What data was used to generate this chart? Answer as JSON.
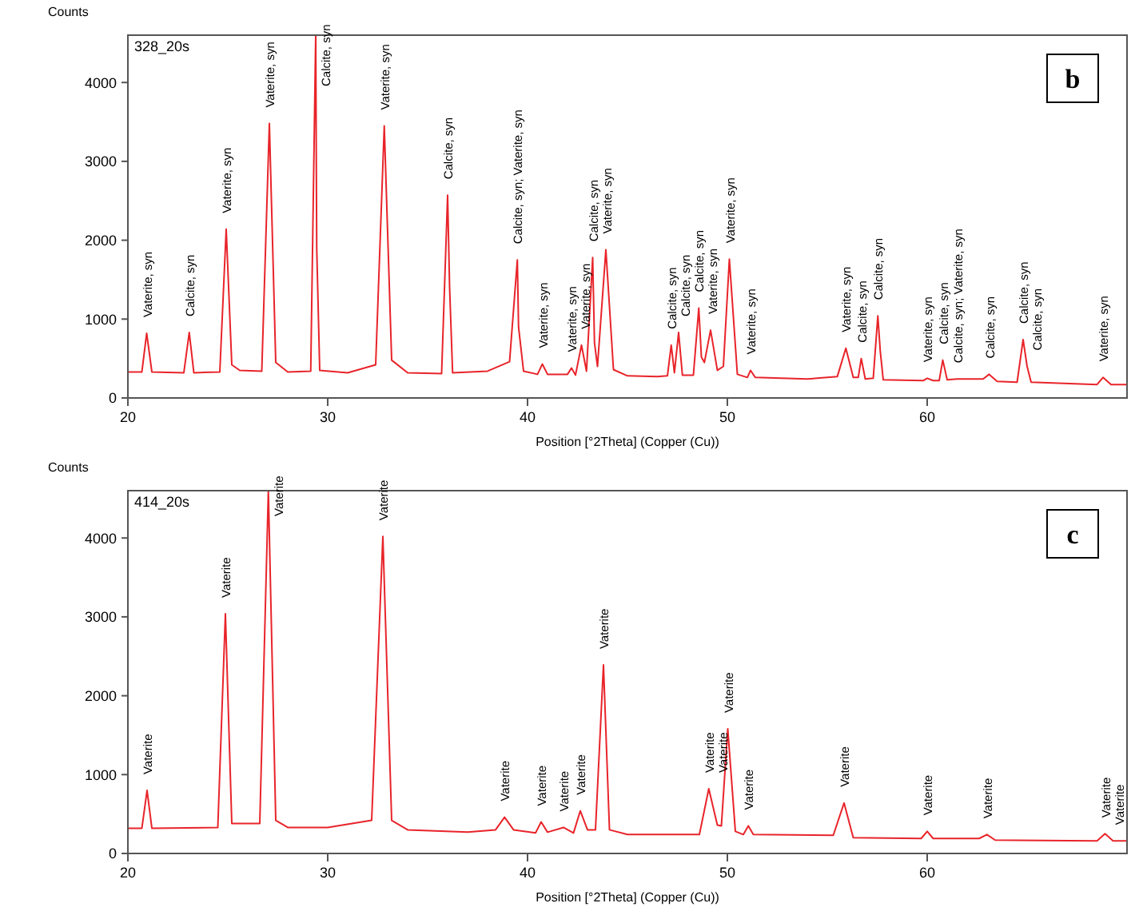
{
  "chart_data": [
    {
      "type": "line",
      "title": "b",
      "ylabel": "Counts",
      "xlabel": "Position [°2Theta] (Copper (Cu))",
      "xlim": [
        20,
        70
      ],
      "xticks": [
        20,
        30,
        40,
        50,
        60
      ],
      "ylim": [
        0,
        4600
      ],
      "yticks": [
        0,
        1000,
        2000,
        3000,
        4000
      ],
      "series": [
        {
          "color": "#e8242a",
          "x": [
            20,
            20.7,
            20.94,
            21.2,
            22.8,
            23.07,
            23.3,
            24.6,
            24.92,
            25.2,
            25.6,
            26.7,
            27.08,
            27.4,
            28,
            29.15,
            29.4,
            29.45,
            29.6,
            31,
            32.4,
            32.83,
            33.2,
            34,
            35.7,
            36.0,
            36.1,
            36.25,
            38,
            39.1,
            39.49,
            39.55,
            39.8,
            40.5,
            40.74,
            41,
            42,
            42.2,
            42.4,
            42.7,
            42.95,
            43.26,
            43.35,
            43.5,
            43.92,
            44.3,
            45,
            46.5,
            47.0,
            47.19,
            47.35,
            47.56,
            47.75,
            48.3,
            48.57,
            48.7,
            48.85,
            49.16,
            49.5,
            49.8,
            50.1,
            50.5,
            51.0,
            51.16,
            51.4,
            54,
            55.5,
            55.93,
            56.3,
            56.55,
            56.7,
            56.9,
            57.3,
            57.53,
            57.65,
            57.8,
            59.8,
            60.0,
            60.3,
            60.6,
            60.78,
            61.0,
            61.5,
            62.8,
            63.1,
            63.5,
            64.5,
            64.8,
            65.0,
            65.2,
            68.5,
            68.8,
            69.2,
            70
          ],
          "values": [
            330,
            330,
            820,
            330,
            320,
            830,
            320,
            330,
            2140,
            420,
            350,
            340,
            3480,
            450,
            330,
            340,
            4600,
            1900,
            350,
            320,
            420,
            3450,
            480,
            320,
            310,
            2570,
            1400,
            320,
            340,
            460,
            1750,
            900,
            340,
            300,
            430,
            300,
            300,
            380,
            290,
            670,
            340,
            1780,
            700,
            400,
            1880,
            360,
            280,
            270,
            280,
            670,
            320,
            830,
            290,
            290,
            1140,
            520,
            450,
            860,
            350,
            400,
            1760,
            300,
            260,
            350,
            260,
            240,
            270,
            630,
            260,
            260,
            500,
            240,
            250,
            1040,
            600,
            230,
            220,
            250,
            220,
            220,
            480,
            230,
            240,
            240,
            300,
            210,
            200,
            740,
            400,
            200,
            170,
            260,
            170,
            170
          ]
        }
      ],
      "annotations": [
        "328_20s",
        {
          "text": "Vaterite, syn",
          "x": 20.94,
          "y": 820
        },
        {
          "text": "Calcite, syn",
          "x": 23.07,
          "y": 830
        },
        {
          "text": "Vaterite, syn",
          "x": 24.92,
          "y": 2140
        },
        {
          "text": "Vaterite, syn",
          "x": 27.08,
          "y": 3480
        },
        {
          "text": "Calcite, syn",
          "x": 29.4,
          "y": 4600
        },
        {
          "text": "Vaterite, syn",
          "x": 32.83,
          "y": 3450
        },
        {
          "text": "Calcite, syn",
          "x": 36.0,
          "y": 2570
        },
        {
          "text": "Calcite, syn; Vaterite, syn",
          "x": 39.49,
          "y": 1750
        },
        {
          "text": "Vaterite, syn",
          "x": 40.74,
          "y": 430
        },
        {
          "text": "Vaterite, syn",
          "x": 42.2,
          "y": 380
        },
        {
          "text": "Vaterite, syn",
          "x": 42.7,
          "y": 670
        },
        {
          "text": "Calcite, syn",
          "x": 43.26,
          "y": 1780
        },
        {
          "text": "Vaterite, syn",
          "x": 43.92,
          "y": 1880
        },
        {
          "text": "Calcite, syn",
          "x": 47.19,
          "y": 670
        },
        {
          "text": "Calcite, syn",
          "x": 47.56,
          "y": 830
        },
        {
          "text": "Calcite, syn",
          "x": 48.57,
          "y": 1140
        },
        {
          "text": "Vaterite, syn",
          "x": 49.16,
          "y": 860
        },
        {
          "text": "Vaterite, syn",
          "x": 50.1,
          "y": 1760
        },
        {
          "text": "Vaterite, syn",
          "x": 51.16,
          "y": 350
        },
        {
          "text": "Vaterite, syn",
          "x": 55.93,
          "y": 630
        },
        {
          "text": "Calcite, syn",
          "x": 56.7,
          "y": 500
        },
        {
          "text": "Calcite, syn",
          "x": 57.53,
          "y": 1040
        },
        {
          "text": "Vaterite, syn",
          "x": 60.0,
          "y": 250
        },
        {
          "text": "Calcite, syn",
          "x": 60.78,
          "y": 480
        },
        {
          "text": "Calcite, syn; Vaterite, syn",
          "x": 61.5,
          "y": 240
        },
        {
          "text": "Calcite, syn",
          "x": 63.1,
          "y": 300
        },
        {
          "text": "Calcite, syn",
          "x": 64.8,
          "y": 740
        },
        {
          "text": "Calcite, syn",
          "x": 65.0,
          "y": 400
        },
        {
          "text": "Vaterite, syn",
          "x": 68.8,
          "y": 260
        }
      ]
    },
    {
      "type": "line",
      "title": "c",
      "ylabel": "Counts",
      "xlabel": "Position [°2Theta] (Copper (Cu))",
      "xlim": [
        20,
        70
      ],
      "xticks": [
        20,
        30,
        40,
        50,
        60
      ],
      "ylim": [
        0,
        4600
      ],
      "yticks": [
        0,
        1000,
        2000,
        3000,
        4000
      ],
      "series": [
        {
          "color": "#e8242a",
          "x": [
            20,
            20.7,
            20.96,
            21.2,
            24.5,
            24.88,
            25.2,
            26.6,
            27.03,
            27.4,
            28,
            30,
            32.2,
            32.76,
            33.2,
            34,
            37,
            38.4,
            38.85,
            39.3,
            40.4,
            40.68,
            41,
            41.8,
            42.3,
            42.64,
            43,
            43.4,
            43.8,
            44.1,
            45,
            48.6,
            49.07,
            49.5,
            49.7,
            50.02,
            50.4,
            50.8,
            51.05,
            51.3,
            55.3,
            55.84,
            56.3,
            59.7,
            60,
            60.3,
            62.6,
            62.99,
            63.4,
            68.5,
            68.9,
            69.3,
            70
          ],
          "values": [
            320,
            320,
            800,
            320,
            330,
            3040,
            380,
            380,
            4600,
            420,
            330,
            330,
            420,
            4020,
            420,
            300,
            270,
            300,
            460,
            300,
            260,
            400,
            270,
            330,
            260,
            540,
            300,
            300,
            2390,
            300,
            240,
            240,
            820,
            360,
            350,
            1580,
            280,
            240,
            350,
            240,
            230,
            640,
            200,
            190,
            280,
            190,
            190,
            240,
            170,
            160,
            250,
            160,
            160
          ]
        }
      ],
      "annotations": [
        "414_20s",
        {
          "text": "Vaterite",
          "x": 20.96,
          "y": 800
        },
        {
          "text": "Vaterite",
          "x": 24.88,
          "y": 3040
        },
        {
          "text": "Vaterite",
          "x": 27.03,
          "y": 4600
        },
        {
          "text": "Vaterite",
          "x": 32.76,
          "y": 4020
        },
        {
          "text": "Vaterite",
          "x": 38.85,
          "y": 460
        },
        {
          "text": "Vaterite",
          "x": 40.68,
          "y": 400
        },
        {
          "text": "Vaterite",
          "x": 41.8,
          "y": 330
        },
        {
          "text": "Vaterite",
          "x": 42.64,
          "y": 540
        },
        {
          "text": "Vaterite",
          "x": 43.8,
          "y": 2390
        },
        {
          "text": "Vaterite",
          "x": 49.07,
          "y": 820
        },
        {
          "text": "Vaterite",
          "x": 49.07,
          "y": 820
        },
        {
          "text": "Vaterite",
          "x": 50.02,
          "y": 1580
        },
        {
          "text": "Vaterite",
          "x": 51.05,
          "y": 350
        },
        {
          "text": "Vaterite",
          "x": 55.84,
          "y": 640
        },
        {
          "text": "Vaterite",
          "x": 60,
          "y": 280
        },
        {
          "text": "Vaterite",
          "x": 62.99,
          "y": 240
        },
        {
          "text": "Vaterite",
          "x": 68.9,
          "y": 250
        },
        {
          "text": "Vaterite",
          "x": 69.3,
          "y": 160
        }
      ]
    }
  ]
}
